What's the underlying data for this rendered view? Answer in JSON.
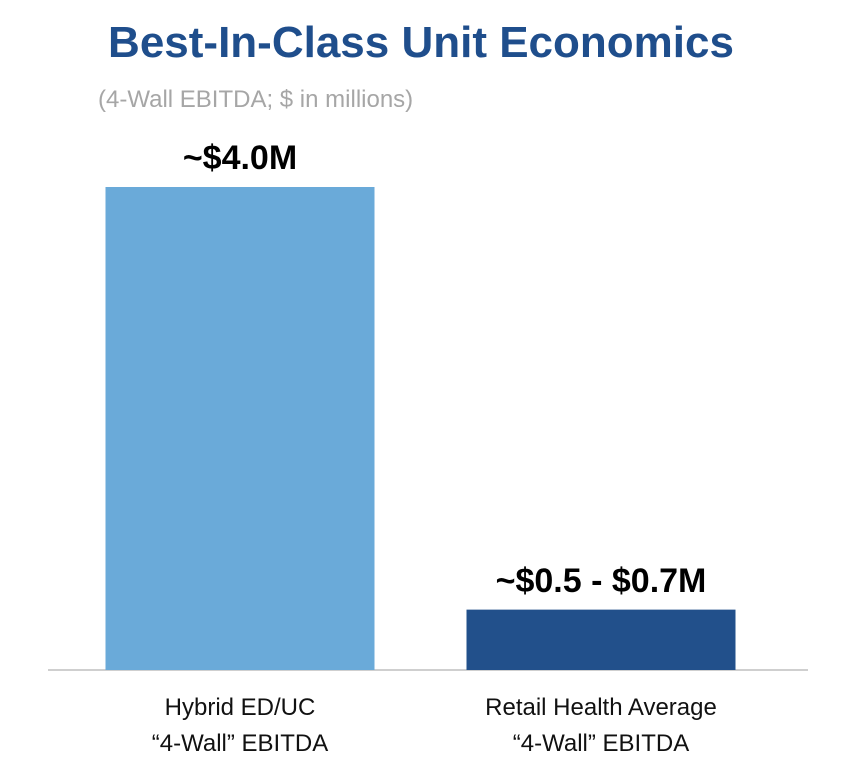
{
  "chart_data": {
    "type": "bar",
    "title": "Best-In-Class Unit Economics",
    "subtitle": "(4-Wall EBITDA; $ in millions)",
    "categories": [
      "Hybrid ED/UC\n“4-Wall” EBITDA",
      "Retail Health Average\n“4-Wall” EBITDA"
    ],
    "values": [
      4.0,
      0.5
    ],
    "value_labels": [
      "~$4.0M",
      "~$0.5 - $0.7M"
    ],
    "colors": [
      "#6aaad9",
      "#22508b"
    ]
  }
}
